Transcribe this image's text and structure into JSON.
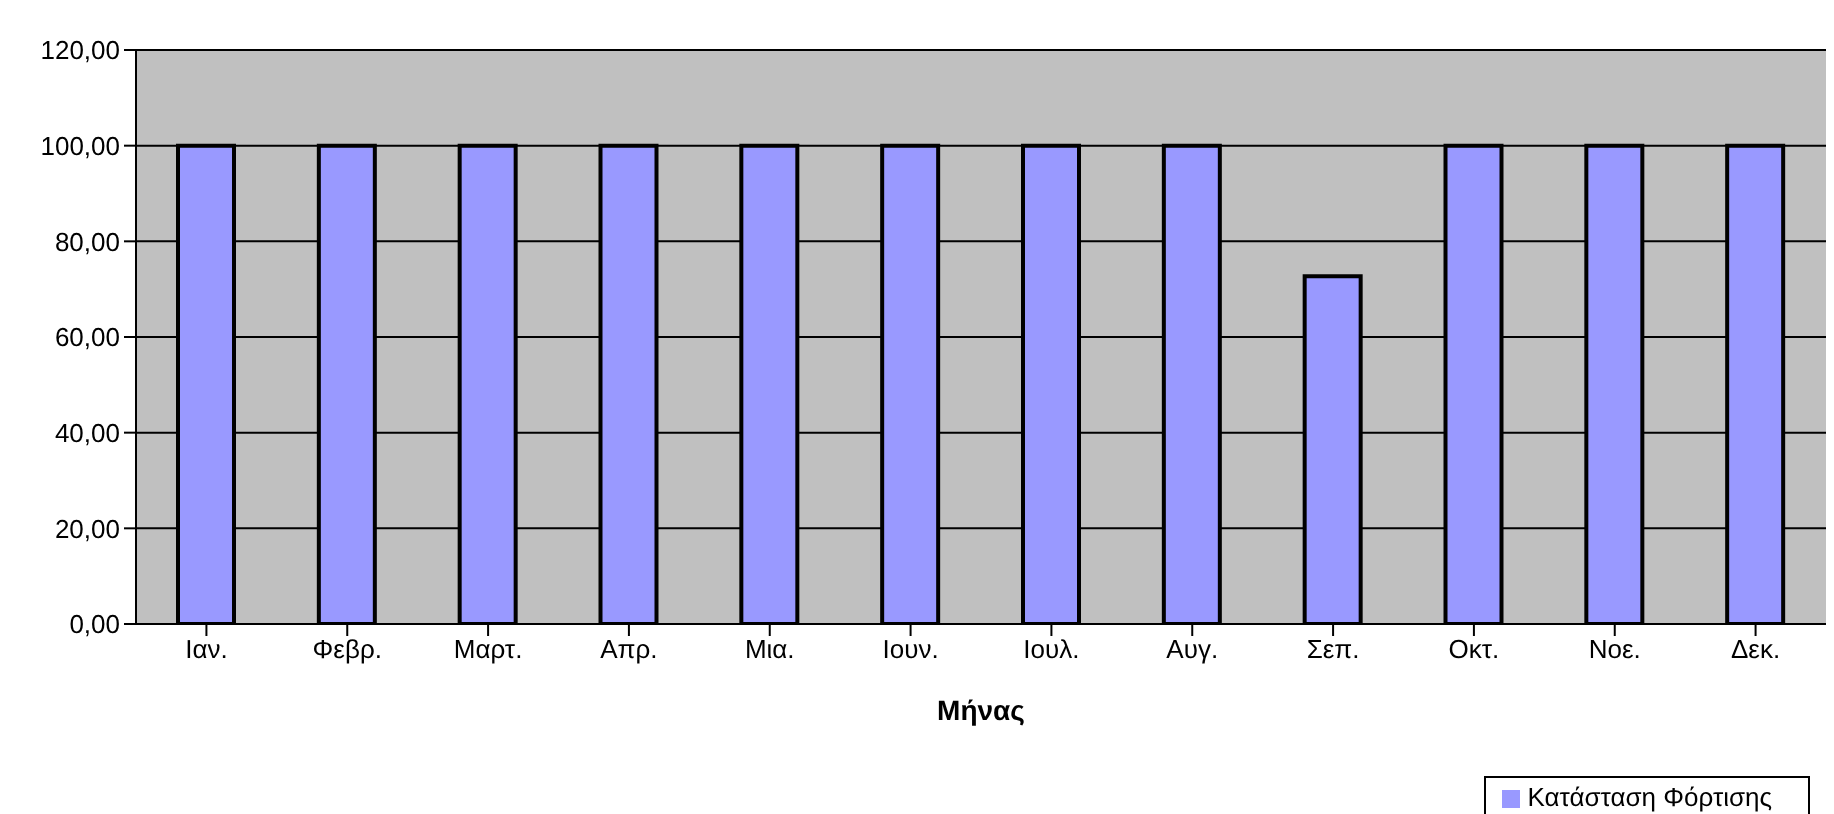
{
  "chart_data": {
    "type": "bar",
    "xlabel": "Μήνας",
    "categories": [
      "Ιαν.",
      "Φεβρ.",
      "Μαρτ.",
      "Απρ.",
      "Μια.",
      "Ιουν.",
      "Ιουλ.",
      "Αυγ.",
      "Σεπ.",
      "Οκτ.",
      "Νοε.",
      "Δεκ."
    ],
    "series": [
      {
        "name": "Κατάσταση Φόρτισης",
        "color": "#9999ff",
        "values": [
          100,
          100,
          100,
          100,
          100,
          100,
          100,
          100,
          72.7,
          100,
          100,
          100
        ]
      }
    ],
    "ylim": [
      0,
      120
    ],
    "yticks": [
      {
        "value": 0,
        "label": "0,00"
      },
      {
        "value": 20,
        "label": "20,00"
      },
      {
        "value": 40,
        "label": "40,00"
      },
      {
        "value": 60,
        "label": "60,00"
      },
      {
        "value": 80,
        "label": "80,00"
      },
      {
        "value": 100,
        "label": "100,00"
      },
      {
        "value": 120,
        "label": "120,00"
      }
    ],
    "grid": "y",
    "legend": "bottom right"
  }
}
